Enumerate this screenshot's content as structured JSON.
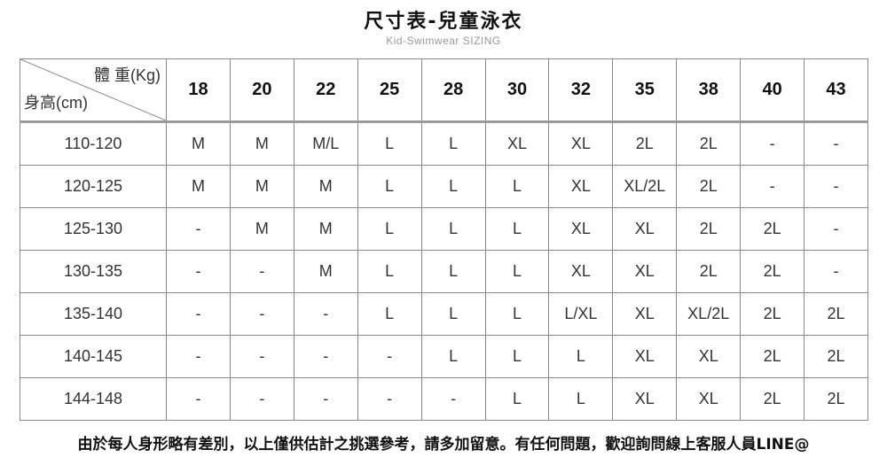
{
  "title": "尺寸表-兒童泳衣",
  "subtitle": "Kid-Swimwear  SIZING",
  "table": {
    "corner_weight": "體 重(Kg)",
    "corner_height": "身高(cm)",
    "weights": [
      "18",
      "20",
      "22",
      "25",
      "28",
      "30",
      "32",
      "35",
      "38",
      "40",
      "43"
    ],
    "rows": [
      {
        "height": "110-120",
        "sizes": [
          "M",
          "M",
          "M/L",
          "L",
          "L",
          "XL",
          "XL",
          "2L",
          "2L",
          "-",
          "-"
        ]
      },
      {
        "height": "120-125",
        "sizes": [
          "M",
          "M",
          "M",
          "L",
          "L",
          "L",
          "XL",
          "XL/2L",
          "2L",
          "-",
          "-"
        ]
      },
      {
        "height": "125-130",
        "sizes": [
          "-",
          "M",
          "M",
          "L",
          "L",
          "L",
          "XL",
          "XL",
          "2L",
          "2L",
          "-"
        ]
      },
      {
        "height": "130-135",
        "sizes": [
          "-",
          "-",
          "M",
          "L",
          "L",
          "L",
          "XL",
          "XL",
          "2L",
          "2L",
          "-"
        ]
      },
      {
        "height": "135-140",
        "sizes": [
          "-",
          "-",
          "-",
          "L",
          "L",
          "L",
          "L/XL",
          "XL",
          "XL/2L",
          "2L",
          "2L"
        ]
      },
      {
        "height": "140-145",
        "sizes": [
          "-",
          "-",
          "-",
          "-",
          "L",
          "L",
          "L",
          "XL",
          "XL",
          "2L",
          "2L"
        ]
      },
      {
        "height": "144-148",
        "sizes": [
          "-",
          "-",
          "-",
          "-",
          "-",
          "L",
          "L",
          "XL",
          "XL",
          "2L",
          "2L"
        ]
      }
    ]
  },
  "note": "由於每人身形略有差別，以上僅供估計之挑選參考，請多加留意。有任何問題，歡迎詢問線上客服人員LINE@"
}
